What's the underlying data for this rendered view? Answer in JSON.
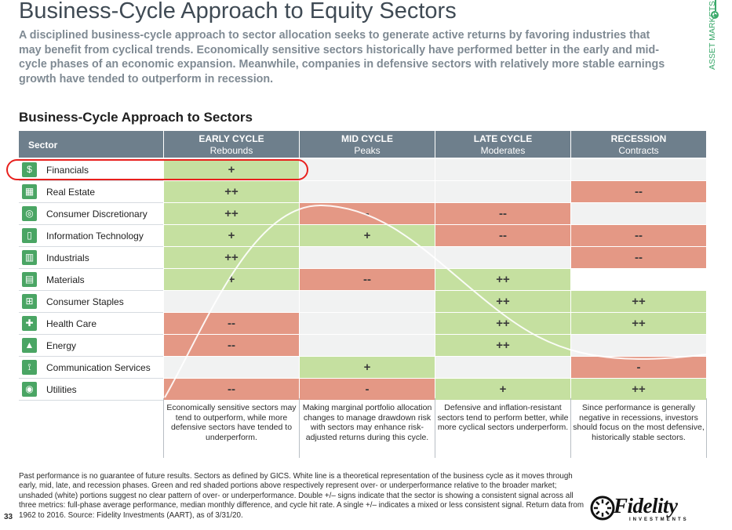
{
  "title": "Business-Cycle Approach to Equity Sectors",
  "intro": "A disciplined business-cycle approach to sector allocation seeks to generate active returns by favoring industries that may benefit from cyclical trends. Economically sensitive sectors historically have performed better in the early and mid-cycle phases of an economic expansion. Meanwhile, companies in defensive sectors with relatively more stable earnings growth have tended to outperform in recession.",
  "side_label": "ASSET MARKETS",
  "section_title": "Business-Cycle Approach to Sectors",
  "table": {
    "sector_header": "Sector",
    "phases": [
      {
        "name": "EARLY CYCLE",
        "sub": "Rebounds"
      },
      {
        "name": "MID CYCLE",
        "sub": "Peaks"
      },
      {
        "name": "LATE CYCLE",
        "sub": "Moderates"
      },
      {
        "name": "RECESSION",
        "sub": "Contracts"
      }
    ],
    "rows": [
      {
        "sector": "Financials",
        "icon": "dollar-icon",
        "cells": [
          {
            "v": "+",
            "t": "pos"
          },
          {
            "v": "",
            "t": "neu"
          },
          {
            "v": "",
            "t": "neu"
          },
          {
            "v": "",
            "t": "neu"
          }
        ]
      },
      {
        "sector": "Real Estate",
        "icon": "building-icon",
        "cells": [
          {
            "v": "++",
            "t": "pos"
          },
          {
            "v": "",
            "t": "neu"
          },
          {
            "v": "",
            "t": "neu"
          },
          {
            "v": "--",
            "t": "neg"
          }
        ]
      },
      {
        "sector": "Consumer Discretionary",
        "icon": "ring-icon",
        "cells": [
          {
            "v": "++",
            "t": "pos"
          },
          {
            "v": "-",
            "t": "neg"
          },
          {
            "v": "--",
            "t": "neg"
          },
          {
            "v": "",
            "t": "neu"
          }
        ]
      },
      {
        "sector": "Information Technology",
        "icon": "phone-icon",
        "cells": [
          {
            "v": "+",
            "t": "pos"
          },
          {
            "v": "+",
            "t": "pos"
          },
          {
            "v": "--",
            "t": "neg"
          },
          {
            "v": "--",
            "t": "neg"
          }
        ]
      },
      {
        "sector": "Industrials",
        "icon": "factory-icon",
        "cells": [
          {
            "v": "++",
            "t": "pos"
          },
          {
            "v": "",
            "t": "neu"
          },
          {
            "v": "",
            "t": "neu"
          },
          {
            "v": "--",
            "t": "neg"
          }
        ]
      },
      {
        "sector": "Materials",
        "icon": "materials-icon",
        "cells": [
          {
            "v": "+",
            "t": "pos"
          },
          {
            "v": "--",
            "t": "neg"
          },
          {
            "v": "++",
            "t": "pos"
          },
          {
            "v": "",
            "t": "white"
          }
        ]
      },
      {
        "sector": "Consumer Staples",
        "icon": "cart-icon",
        "cells": [
          {
            "v": "",
            "t": "neu"
          },
          {
            "v": "",
            "t": "neu"
          },
          {
            "v": "++",
            "t": "pos"
          },
          {
            "v": "++",
            "t": "pos"
          }
        ]
      },
      {
        "sector": "Health Care",
        "icon": "health-cross-icon",
        "cells": [
          {
            "v": "--",
            "t": "neg"
          },
          {
            "v": "",
            "t": "neu"
          },
          {
            "v": "++",
            "t": "pos"
          },
          {
            "v": "++",
            "t": "pos"
          }
        ]
      },
      {
        "sector": "Energy",
        "icon": "oil-rig-icon",
        "cells": [
          {
            "v": "--",
            "t": "neg"
          },
          {
            "v": "",
            "t": "neu"
          },
          {
            "v": "++",
            "t": "pos"
          },
          {
            "v": "",
            "t": "neu"
          }
        ]
      },
      {
        "sector": "Communication Services",
        "icon": "tower-icon",
        "cells": [
          {
            "v": "",
            "t": "neu"
          },
          {
            "v": "+",
            "t": "pos"
          },
          {
            "v": "",
            "t": "neu"
          },
          {
            "v": "-",
            "t": "neg"
          }
        ]
      },
      {
        "sector": "Utilities",
        "icon": "bulb-icon",
        "cells": [
          {
            "v": "--",
            "t": "neg"
          },
          {
            "v": "-",
            "t": "neg"
          },
          {
            "v": "+",
            "t": "pos"
          },
          {
            "v": "++",
            "t": "pos"
          }
        ]
      }
    ],
    "descriptions": [
      "Economically sensitive sectors may tend to outperform, while more defensive sectors have tended to underperform.",
      "Making marginal portfolio allocation changes to manage drawdown risk with sectors may enhance risk-adjusted returns during this cycle.",
      "Defensive and inflation-resistant sectors tend to perform better, while more cyclical sectors underperform.",
      "Since performance is generally negative in recessions, investors should focus on the most defensive, historically stable sectors."
    ]
  },
  "colors": {
    "positive": "#c5e0a0",
    "negative": "#e49885",
    "neutral": "#f1f2f2",
    "header": "#6e7f8c",
    "icon": "#4aa564",
    "highlight": "#e8201d"
  },
  "footnote": "Past performance is no guarantee of future results. Sectors as defined by GICS. White line is a theoretical representation of the business cycle as it moves through early, mid, late, and recession phases. Green and red shaded portions above respectively represent over- or underperformance relative to the broader market; unshaded (white) portions suggest no clear pattern of over- or underperformance. Double +/– signs indicate that the sector is showing a consistent signal across all three metrics: full-phase average performance, median monthly difference, and cycle hit rate. A single +/– indicates a mixed or less consistent signal. Return data from 1962 to 2016. Source: Fidelity Investments (AART), as of 3/31/20.",
  "page_number": "33",
  "logo": {
    "word": "Fidelity",
    "sub": "INVESTMENTS"
  }
}
